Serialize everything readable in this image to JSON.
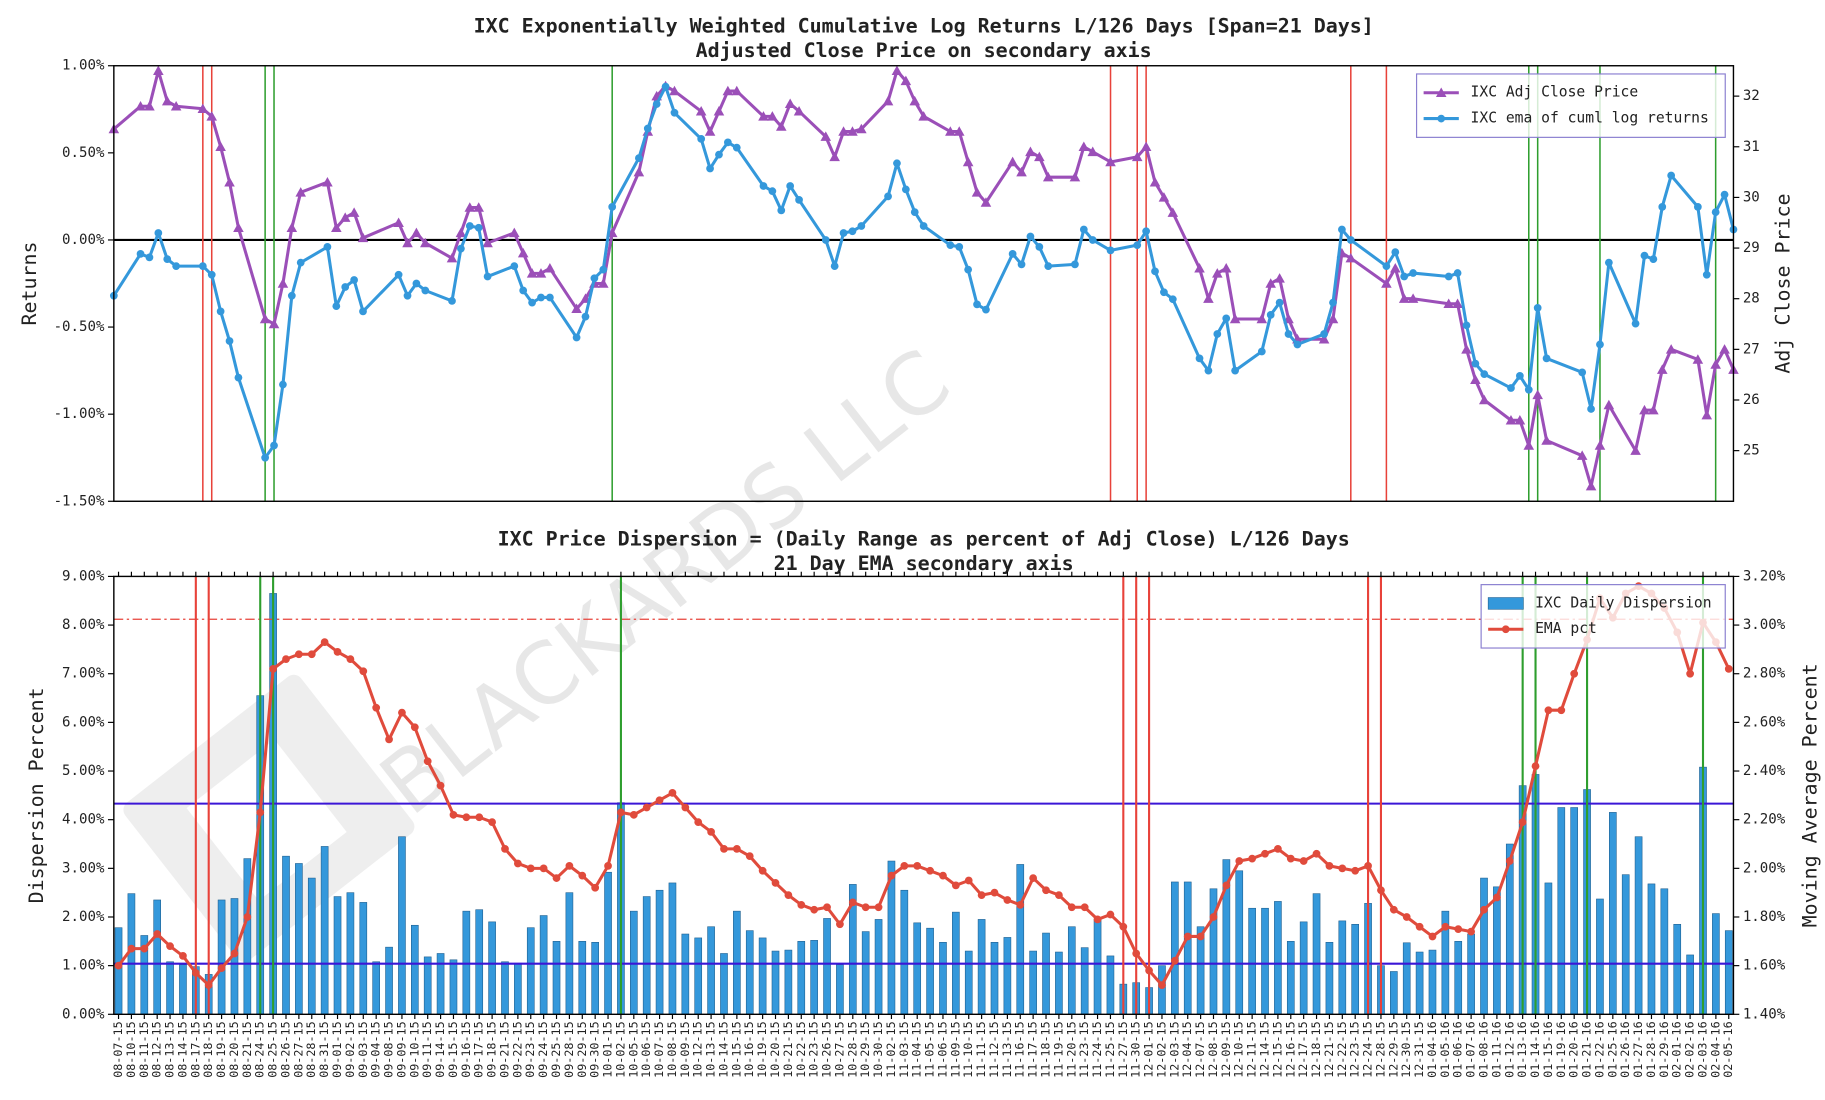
{
  "chart_data": [
    {
      "type": "line",
      "title": "IXC Exponentially Weighted Cumulative Log Returns L/126 Days [Span=21 Days]",
      "subtitle": "Adjusted Close Price on secondary axis",
      "y_label": "Returns",
      "y2_label": "Adj Close Price",
      "ylim": [
        -1.5,
        1.0
      ],
      "yticks": [
        {
          "value": -1.5,
          "label": "-1.50%"
        },
        {
          "value": -1.0,
          "label": "-1.00%"
        },
        {
          "value": -0.5,
          "label": "-0.50%"
        },
        {
          "value": 0,
          "label": "0.00%"
        },
        {
          "value": 0.5,
          "label": "0.50%"
        },
        {
          "value": 1.0,
          "label": "1.00%"
        }
      ],
      "y2lim": [
        24.0,
        32.6
      ],
      "y2ticks": [
        25,
        26,
        27,
        28,
        29,
        30,
        31,
        32
      ],
      "legend": "upper right",
      "hlines": [
        {
          "value": 0,
          "color": "#000000"
        }
      ],
      "vlines": [
        {
          "category": "08-17-15",
          "color": "#e8423a"
        },
        {
          "category": "08-18-15",
          "color": "#e8423a"
        },
        {
          "category": "08-24-15",
          "color": "#2e9e2e"
        },
        {
          "category": "08-25-15",
          "color": "#2e9e2e"
        },
        {
          "category": "10-02-15",
          "color": "#2e9e2e"
        },
        {
          "category": "11-27-15",
          "color": "#e8423a"
        },
        {
          "category": "11-30-15",
          "color": "#e8423a"
        },
        {
          "category": "12-01-15",
          "color": "#e8423a"
        },
        {
          "category": "12-24-15",
          "color": "#e8423a"
        },
        {
          "category": "12-28-15",
          "color": "#e8423a"
        },
        {
          "category": "01-13-16",
          "color": "#2e9e2e"
        },
        {
          "category": "01-14-16",
          "color": "#2e9e2e"
        },
        {
          "category": "01-21-16",
          "color": "#2e9e2e"
        },
        {
          "category": "02-03-16",
          "color": "#2e9e2e"
        }
      ],
      "series": [
        {
          "name": "IXC Adj Close Price",
          "color": "#9b4fb8",
          "marker": "triangle",
          "axis": "y2",
          "values": [
            31.35,
            31.8,
            31.8,
            32.5,
            31.9,
            31.8,
            31.75,
            31.6,
            31.0,
            30.3,
            29.4,
            27.6,
            27.5,
            28.3,
            29.4,
            30.1,
            30.3,
            29.4,
            29.6,
            29.7,
            29.2,
            29.5,
            29.1,
            29.3,
            29.1,
            28.8,
            29.3,
            29.8,
            29.8,
            29.1,
            29.3,
            28.9,
            28.5,
            28.5,
            28.6,
            27.8,
            28.0,
            28.3,
            28.3,
            29.3,
            30.5,
            31.3,
            32.0,
            32.2,
            32.1,
            31.7,
            31.3,
            31.7,
            32.1,
            32.1,
            31.6,
            31.6,
            31.4,
            31.85,
            31.7,
            31.2,
            30.8,
            31.3,
            31.3,
            31.35,
            31.9,
            32.5,
            32.3,
            31.9,
            31.6,
            31.3,
            31.3,
            30.7,
            30.1,
            29.9,
            30.7,
            30.5,
            30.9,
            30.8,
            30.4,
            30.4,
            31.0,
            30.9,
            30.7,
            30.8,
            31.0,
            30.3,
            30.0,
            29.7,
            28.6,
            28.0,
            28.5,
            28.6,
            27.6,
            27.6,
            28.3,
            28.4,
            27.6,
            27.2,
            27.2,
            27.6,
            28.9,
            28.8,
            28.3,
            28.6,
            28.0,
            28.0,
            27.9,
            27.9,
            27.0,
            26.4,
            26.0,
            25.6,
            25.6,
            25.1,
            26.1,
            25.2,
            24.9,
            24.3,
            25.1,
            25.9,
            25.0,
            25.8,
            25.8,
            26.6,
            27.0,
            26.8,
            25.7,
            26.7,
            27.0,
            26.6
          ]
        },
        {
          "name": "IXC ema of cuml log returns",
          "color": "#3498db",
          "marker": "circle",
          "values": [
            -0.32,
            -0.08,
            -0.1,
            0.04,
            -0.11,
            -0.15,
            -0.15,
            -0.2,
            -0.41,
            -0.58,
            -0.79,
            -1.25,
            -1.18,
            -0.83,
            -0.32,
            -0.13,
            -0.04,
            -0.38,
            -0.27,
            -0.23,
            -0.41,
            -0.2,
            -0.32,
            -0.25,
            -0.29,
            -0.35,
            -0.05,
            0.08,
            0.07,
            -0.21,
            -0.15,
            -0.29,
            -0.36,
            -0.33,
            -0.33,
            -0.56,
            -0.44,
            -0.22,
            -0.17,
            0.19,
            0.47,
            0.64,
            0.78,
            0.88,
            0.73,
            0.58,
            0.41,
            0.49,
            0.56,
            0.53,
            0.31,
            0.28,
            0.17,
            0.31,
            0.23,
            0,
            -0.15,
            0.04,
            0.05,
            0.08,
            0.25,
            0.44,
            0.29,
            0.16,
            0.08,
            -0.03,
            -0.04,
            -0.17,
            -0.37,
            -0.4,
            -0.08,
            -0.14,
            0.02,
            -0.04,
            -0.15,
            -0.14,
            0.06,
            0,
            -0.06,
            -0.03,
            0.05,
            -0.18,
            -0.3,
            -0.34,
            -0.68,
            -0.75,
            -0.54,
            -0.45,
            -0.75,
            -0.64,
            -0.43,
            -0.36,
            -0.54,
            -0.6,
            -0.54,
            -0.36,
            0.06,
            0,
            -0.15,
            -0.07,
            -0.21,
            -0.19,
            -0.21,
            -0.19,
            -0.49,
            -0.71,
            -0.77,
            -0.85,
            -0.78,
            -0.86,
            -0.39,
            -0.68,
            -0.76,
            -0.97,
            -0.6,
            -0.13,
            -0.48,
            -0.09,
            -0.11,
            0.19,
            0.37,
            0.19,
            -0.2,
            0.16,
            0.26,
            0.06
          ]
        }
      ]
    },
    {
      "type": "combo",
      "title": "IXC Price Dispersion = (Daily Range as percent of Adj Close) L/126 Days",
      "subtitle": "21 Day EMA secondary axis",
      "y_label": "Dispersion Percent",
      "y2_label": "Moving Average Percent",
      "watermark": "BLACKARDS LLC",
      "categories": [
        "08-07-15",
        "08-10-15",
        "08-11-15",
        "08-12-15",
        "08-13-15",
        "08-14-15",
        "08-17-15",
        "08-18-15",
        "08-19-15",
        "08-20-15",
        "08-21-15",
        "08-24-15",
        "08-25-15",
        "08-26-15",
        "08-27-15",
        "08-28-15",
        "08-31-15",
        "09-01-15",
        "09-02-15",
        "09-03-15",
        "09-04-15",
        "09-08-15",
        "09-09-15",
        "09-10-15",
        "09-11-15",
        "09-14-15",
        "09-15-15",
        "09-16-15",
        "09-17-15",
        "09-18-15",
        "09-21-15",
        "09-22-15",
        "09-23-15",
        "09-24-15",
        "09-25-15",
        "09-28-15",
        "09-29-15",
        "09-30-15",
        "10-01-15",
        "10-02-15",
        "10-05-15",
        "10-06-15",
        "10-07-15",
        "10-08-15",
        "10-09-15",
        "10-12-15",
        "10-13-15",
        "10-14-15",
        "10-15-15",
        "10-16-15",
        "10-19-15",
        "10-20-15",
        "10-21-15",
        "10-22-15",
        "10-23-15",
        "10-26-15",
        "10-27-15",
        "10-28-15",
        "10-29-15",
        "10-30-15",
        "11-02-15",
        "11-03-15",
        "11-04-15",
        "11-05-15",
        "11-06-15",
        "11-09-15",
        "11-10-15",
        "11-11-15",
        "11-12-15",
        "11-13-15",
        "11-16-15",
        "11-17-15",
        "11-18-15",
        "11-19-15",
        "11-20-15",
        "11-23-15",
        "11-24-15",
        "11-25-15",
        "11-27-15",
        "11-30-15",
        "12-01-15",
        "12-02-15",
        "12-03-15",
        "12-04-15",
        "12-07-15",
        "12-08-15",
        "12-09-15",
        "12-10-15",
        "12-11-15",
        "12-14-15",
        "12-15-15",
        "12-16-15",
        "12-17-15",
        "12-18-15",
        "12-21-15",
        "12-22-15",
        "12-23-15",
        "12-24-15",
        "12-28-15",
        "12-29-15",
        "12-30-15",
        "12-31-15",
        "01-04-16",
        "01-05-16",
        "01-06-16",
        "01-07-16",
        "01-08-16",
        "01-11-16",
        "01-12-16",
        "01-13-16",
        "01-14-16",
        "01-15-16",
        "01-19-16",
        "01-20-16",
        "01-21-16",
        "01-22-16",
        "01-25-16",
        "01-26-16",
        "01-27-16",
        "01-28-16",
        "01-29-16",
        "02-01-16",
        "02-02-16",
        "02-03-16",
        "02-04-16",
        "02-05-16"
      ],
      "ylim": [
        0,
        9
      ],
      "yticks": [
        {
          "value": 0,
          "label": "0.00%"
        },
        {
          "value": 1,
          "label": "1.00%"
        },
        {
          "value": 2,
          "label": "2.00%"
        },
        {
          "value": 3,
          "label": "3.00%"
        },
        {
          "value": 4,
          "label": "4.00%"
        },
        {
          "value": 5,
          "label": "5.00%"
        },
        {
          "value": 6,
          "label": "6.00%"
        },
        {
          "value": 7,
          "label": "7.00%"
        },
        {
          "value": 8,
          "label": "8.00%"
        },
        {
          "value": 9,
          "label": "9.00%"
        }
      ],
      "y2lim": [
        1.4,
        3.2
      ],
      "y2ticks": [
        {
          "value": 1.4,
          "label": "1.40%"
        },
        {
          "value": 1.6,
          "label": "1.60%"
        },
        {
          "value": 1.8,
          "label": "1.80%"
        },
        {
          "value": 2.0,
          "label": "2.00%"
        },
        {
          "value": 2.2,
          "label": "2.20%"
        },
        {
          "value": 2.4,
          "label": "2.40%"
        },
        {
          "value": 2.6,
          "label": "2.60%"
        },
        {
          "value": 2.8,
          "label": "2.80%"
        },
        {
          "value": 3.0,
          "label": "3.00%"
        },
        {
          "value": 3.2,
          "label": "3.20%"
        }
      ],
      "legend": "upper right",
      "hlines": [
        {
          "value": 4.33,
          "color": "#3b16d6"
        },
        {
          "value": 1.04,
          "color": "#3b16d6"
        },
        {
          "value": 8.12,
          "color": "#e8423a",
          "style": "dashdot"
        }
      ],
      "vlines": [
        {
          "category": "08-17-15",
          "color": "#e8423a"
        },
        {
          "category": "08-18-15",
          "color": "#e8423a"
        },
        {
          "category": "08-24-15",
          "color": "#2e9e2e"
        },
        {
          "category": "08-25-15",
          "color": "#2e9e2e"
        },
        {
          "category": "10-02-15",
          "color": "#2e9e2e"
        },
        {
          "category": "11-27-15",
          "color": "#e8423a"
        },
        {
          "category": "11-30-15",
          "color": "#e8423a"
        },
        {
          "category": "12-01-15",
          "color": "#e8423a"
        },
        {
          "category": "12-24-15",
          "color": "#e8423a"
        },
        {
          "category": "12-28-15",
          "color": "#e8423a"
        },
        {
          "category": "01-13-16",
          "color": "#2e9e2e"
        },
        {
          "category": "01-14-16",
          "color": "#2e9e2e"
        },
        {
          "category": "01-21-16",
          "color": "#2e9e2e"
        },
        {
          "category": "02-03-16",
          "color": "#2e9e2e"
        }
      ],
      "series": [
        {
          "name": "IXC Daily Dispersion",
          "type": "bar",
          "color": "#3498db",
          "values": [
            1.78,
            2.48,
            1.62,
            2.35,
            1.08,
            1.02,
            0.98,
            0.82,
            2.35,
            2.38,
            3.2,
            6.55,
            8.65,
            3.25,
            3.1,
            2.8,
            3.45,
            2.42,
            2.5,
            2.3,
            1.08,
            1.38,
            3.65,
            1.83,
            1.18,
            1.25,
            1.12,
            2.12,
            2.15,
            1.9,
            1.08,
            1.05,
            1.78,
            2.03,
            1.5,
            2.5,
            1.5,
            1.48,
            2.92,
            4.35,
            2.12,
            2.42,
            2.55,
            2.7,
            1.65,
            1.57,
            1.8,
            1.25,
            2.12,
            1.72,
            1.57,
            1.3,
            1.32,
            1.5,
            1.52,
            1.97,
            1.02,
            2.67,
            1.7,
            1.95,
            3.15,
            2.55,
            1.88,
            1.77,
            1.48,
            2.1,
            1.3,
            1.95,
            1.48,
            1.58,
            3.08,
            1.3,
            1.67,
            1.28,
            1.8,
            1.37,
            1.95,
            1.2,
            0.62,
            0.65,
            0.55,
            1.0,
            2.72,
            2.72,
            1.8,
            2.58,
            3.18,
            2.95,
            2.18,
            2.18,
            2.32,
            1.5,
            1.9,
            2.48,
            1.48,
            1.92,
            1.85,
            2.28,
            1.0,
            0.88,
            1.47,
            1.28,
            1.32,
            2.12,
            1.5,
            1.65,
            2.8,
            2.62,
            3.5,
            4.7,
            4.93,
            2.7,
            4.25,
            4.25,
            4.62,
            2.37,
            4.15,
            2.87,
            3.65,
            2.68,
            2.58,
            1.85,
            1.22,
            5.08,
            2.07,
            1.72
          ]
        },
        {
          "name": "EMA pct",
          "type": "line",
          "color": "#e04b3c",
          "marker": "circle",
          "axis": "y2",
          "values": [
            1.6,
            1.67,
            1.67,
            1.73,
            1.68,
            1.64,
            1.57,
            1.52,
            1.59,
            1.65,
            1.8,
            2.23,
            2.82,
            2.86,
            2.88,
            2.88,
            2.93,
            2.89,
            2.86,
            2.81,
            2.66,
            2.53,
            2.64,
            2.58,
            2.44,
            2.34,
            2.22,
            2.21,
            2.21,
            2.19,
            2.08,
            2.02,
            2.0,
            2.0,
            1.96,
            2.01,
            1.97,
            1.92,
            2.01,
            2.23,
            2.22,
            2.25,
            2.28,
            2.31,
            2.25,
            2.19,
            2.15,
            2.08,
            2.08,
            2.05,
            1.99,
            1.94,
            1.89,
            1.85,
            1.83,
            1.84,
            1.77,
            1.86,
            1.84,
            1.84,
            1.97,
            2.01,
            2.01,
            1.99,
            1.97,
            1.93,
            1.95,
            1.89,
            1.9,
            1.87,
            1.85,
            1.96,
            1.91,
            1.89,
            1.84,
            1.84,
            1.79,
            1.81,
            1.76,
            1.65,
            1.58,
            1.52,
            1.62,
            1.72,
            1.72,
            1.8,
            1.93,
            2.03,
            2.04,
            2.06,
            2.08,
            2.04,
            2.03,
            2.06,
            2.01,
            2.0,
            1.99,
            2.01,
            1.91,
            1.83,
            1.8,
            1.76,
            1.72,
            1.76,
            1.75,
            1.74,
            1.83,
            1.88,
            2.03,
            2.19,
            2.42,
            2.65,
            2.65,
            2.8,
            2.94,
            3.11,
            3.03,
            3.13,
            3.16,
            3.13,
            3.07,
            2.97,
            2.8,
            3.01,
            2.93,
            2.82
          ]
        }
      ]
    }
  ]
}
